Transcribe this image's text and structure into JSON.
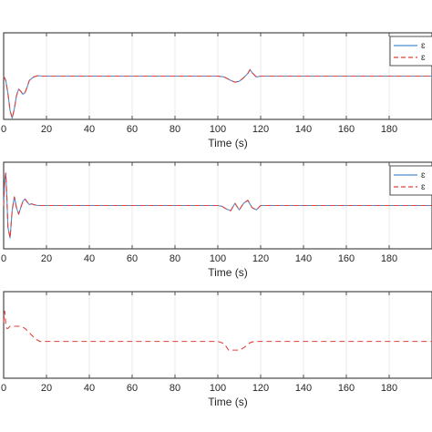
{
  "chart_data": [
    {
      "type": "line",
      "xlabel": "Time (s)",
      "ylabel": "",
      "xlim": [
        0,
        200
      ],
      "ylim": [
        -1,
        1
      ],
      "xticks": [
        0,
        20,
        40,
        60,
        80,
        100,
        120,
        140,
        160,
        180
      ],
      "grid": true,
      "legend": {
        "position": "top-right",
        "entries": [
          "ɛ",
          "ɛ"
        ]
      },
      "series": [
        {
          "style": "solid",
          "color": "#4a8fd4",
          "x": [
            0,
            1,
            2,
            3,
            4,
            5,
            6,
            7,
            8,
            9,
            10,
            11,
            12,
            14,
            16,
            18,
            20,
            100,
            103,
            106,
            108,
            110,
            112,
            114,
            115,
            116,
            118,
            120,
            200
          ],
          "y": [
            0,
            -0.1,
            -0.4,
            -0.8,
            -0.97,
            -0.75,
            -0.45,
            -0.3,
            -0.35,
            -0.42,
            -0.38,
            -0.25,
            -0.1,
            -0.02,
            0.01,
            0,
            0,
            0,
            -0.02,
            -0.1,
            -0.14,
            -0.12,
            -0.04,
            0.06,
            0.15,
            0.08,
            -0.02,
            0,
            0
          ]
        },
        {
          "style": "dashed",
          "color": "#e0413a",
          "x": [
            0,
            1,
            2,
            3,
            4,
            5,
            6,
            7,
            8,
            9,
            10,
            11,
            12,
            14,
            16,
            18,
            20,
            100,
            103,
            106,
            108,
            110,
            112,
            114,
            115,
            116,
            118,
            120,
            200
          ],
          "y": [
            0,
            -0.1,
            -0.4,
            -0.8,
            -0.97,
            -0.75,
            -0.45,
            -0.3,
            -0.35,
            -0.42,
            -0.38,
            -0.25,
            -0.1,
            -0.02,
            0.01,
            0,
            0,
            0,
            -0.02,
            -0.1,
            -0.14,
            -0.12,
            -0.04,
            0.06,
            0.15,
            0.08,
            -0.02,
            0,
            0
          ]
        }
      ]
    },
    {
      "type": "line",
      "xlabel": "Time (s)",
      "ylabel": "",
      "xlim": [
        0,
        200
      ],
      "ylim": [
        -1,
        1
      ],
      "xticks": [
        0,
        20,
        40,
        60,
        80,
        100,
        120,
        140,
        160,
        180
      ],
      "grid": true,
      "legend": {
        "position": "top-right",
        "entries": [
          "ɛ",
          "ɛ"
        ]
      },
      "series": [
        {
          "style": "solid",
          "color": "#4a8fd4",
          "x": [
            0,
            0.5,
            1,
            1.5,
            2,
            3,
            4,
            5,
            6,
            7,
            8,
            9,
            10,
            11,
            12,
            13,
            14,
            16,
            20,
            100,
            102,
            104,
            106,
            108,
            110,
            112,
            114,
            116,
            118,
            120,
            200
          ],
          "y": [
            0,
            0.6,
            0.75,
            0.2,
            -0.5,
            -0.75,
            -0.1,
            0.2,
            -0.05,
            -0.2,
            -0.05,
            0.1,
            0.15,
            0.08,
            0.02,
            0.04,
            0.02,
            0,
            0,
            0,
            -0.02,
            -0.08,
            -0.12,
            0.05,
            -0.1,
            0.05,
            0.12,
            -0.05,
            -0.1,
            0,
            0
          ]
        },
        {
          "style": "dashed",
          "color": "#e0413a",
          "x": [
            0,
            0.5,
            1,
            1.5,
            2,
            3,
            4,
            5,
            6,
            7,
            8,
            9,
            10,
            11,
            12,
            13,
            14,
            16,
            20,
            100,
            102,
            104,
            106,
            108,
            110,
            112,
            114,
            116,
            118,
            120,
            200
          ],
          "y": [
            0,
            0.6,
            0.75,
            0.2,
            -0.5,
            -0.75,
            -0.1,
            0.2,
            -0.05,
            -0.2,
            -0.05,
            0.1,
            0.15,
            0.08,
            0.02,
            0.04,
            0.02,
            0,
            0,
            0,
            -0.02,
            -0.08,
            -0.12,
            0.05,
            -0.1,
            0.05,
            0.12,
            -0.05,
            -0.1,
            0,
            0
          ]
        }
      ]
    },
    {
      "type": "line",
      "xlabel": "Time (s)",
      "ylabel": "",
      "xlim": [
        0,
        200
      ],
      "ylim": [
        -1,
        1
      ],
      "xticks": [
        0,
        20,
        40,
        60,
        80,
        100,
        120,
        140,
        160,
        180
      ],
      "grid": true,
      "series": [
        {
          "style": "dashed",
          "color": "#e0413a",
          "x": [
            0,
            0.5,
            1,
            1.5,
            2,
            3,
            5,
            8,
            10,
            12,
            15,
            17,
            100,
            103,
            105,
            110,
            112,
            115,
            117,
            200
          ],
          "y": [
            0.3,
            0.55,
            0.25,
            0.15,
            0.15,
            0.2,
            0.2,
            0.2,
            0.15,
            0.05,
            -0.1,
            -0.15,
            -0.15,
            -0.2,
            -0.35,
            -0.35,
            -0.3,
            -0.18,
            -0.15,
            -0.15
          ]
        }
      ]
    }
  ]
}
